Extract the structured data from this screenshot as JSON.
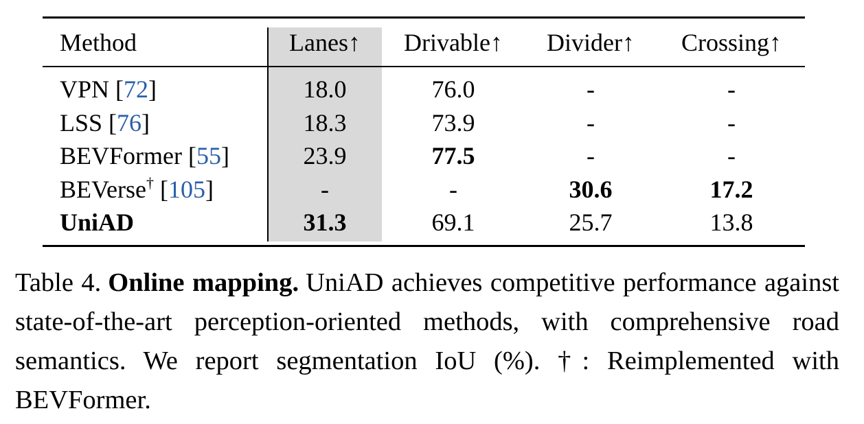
{
  "table": {
    "header": [
      "Method",
      "Lanes↑",
      "Drivable↑",
      "Divider↑",
      "Crossing↑"
    ],
    "highlight_column": 1,
    "rows": [
      {
        "method": [
          {
            "text": "VPN "
          },
          {
            "text": "["
          },
          {
            "text": "72",
            "link": true
          },
          {
            "text": "]"
          }
        ],
        "cells": [
          "18.0",
          "76.0",
          "-",
          "-"
        ],
        "bold": [
          false,
          false,
          false,
          false
        ],
        "method_bold": false
      },
      {
        "method": [
          {
            "text": "LSS "
          },
          {
            "text": "["
          },
          {
            "text": "76",
            "link": true
          },
          {
            "text": "]"
          }
        ],
        "cells": [
          "18.3",
          "73.9",
          "-",
          "-"
        ],
        "bold": [
          false,
          false,
          false,
          false
        ],
        "method_bold": false
      },
      {
        "method": [
          {
            "text": "BEVFormer "
          },
          {
            "text": "["
          },
          {
            "text": "55",
            "link": true
          },
          {
            "text": "]"
          }
        ],
        "cells": [
          "23.9",
          "77.5",
          "-",
          "-"
        ],
        "bold": [
          false,
          true,
          false,
          false
        ],
        "method_bold": false
      },
      {
        "method": [
          {
            "text": "BEVerse"
          },
          {
            "text": "†",
            "sup": true
          },
          {
            "text": " ["
          },
          {
            "text": "105",
            "link": true
          },
          {
            "text": "]"
          }
        ],
        "cells": [
          "-",
          "-",
          "30.6",
          "17.2"
        ],
        "bold": [
          false,
          false,
          true,
          true
        ],
        "method_bold": false
      },
      {
        "method": [
          {
            "text": "UniAD"
          }
        ],
        "cells": [
          "31.3",
          "69.1",
          "25.7",
          "13.8"
        ],
        "bold": [
          true,
          false,
          false,
          false
        ],
        "method_bold": true
      }
    ]
  },
  "caption": {
    "label": "Table 4.",
    "title": "Online mapping.",
    "text": "UniAD achieves competitive performance against state-of-the-art perception-oriented methods, with comprehensive road semantics. We report segmentation IoU (%). †: Reimplemented with BEVFormer."
  }
}
